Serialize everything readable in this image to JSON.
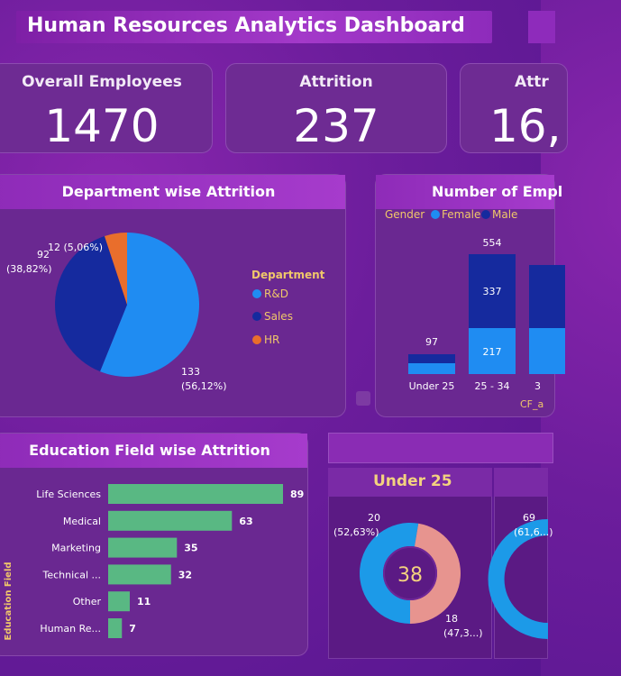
{
  "title": "Human Resources Analytics Dashboard",
  "kpis": [
    {
      "label": "Overall Employees",
      "value": "1470"
    },
    {
      "label": "Attrition",
      "value": "237"
    },
    {
      "label": "Attr",
      "value": "16,"
    }
  ],
  "dept_chart": {
    "title": "Department wise Attrition",
    "legend_title": "Department",
    "legend": [
      "R&D",
      "Sales",
      "HR"
    ],
    "labels": {
      "rd": [
        "133",
        "(56,12%)"
      ],
      "sales": [
        "92",
        "(38,82%)"
      ],
      "hr": [
        "12 (5,06%)"
      ]
    }
  },
  "age_chart": {
    "title": "Number of Empl",
    "legend_title": "Gender",
    "legend": [
      "Female",
      "Male"
    ],
    "xlabel": "CF_a",
    "labels": {
      "under25_total": "97",
      "a25_34_total": "554",
      "a25_34_male": "337",
      "a25_34_female": "217",
      "third_cat": "3"
    }
  },
  "edu_chart": {
    "title": "Education Field wise Attrition",
    "ylabel": "Education Field"
  },
  "age_band": {
    "label": "Under 25",
    "center": "38",
    "left_val": "20",
    "left_pct": "(52,63%)",
    "right_val": "18",
    "right_pct": "(47,3...)",
    "second_val": "69",
    "second_pct": "(61,6...)"
  },
  "chart_data": [
    {
      "type": "pie",
      "title": "Department wise Attrition",
      "categories": [
        "R&D",
        "Sales",
        "HR"
      ],
      "values": [
        133,
        92,
        12
      ],
      "percents": [
        56.12,
        38.82,
        5.06
      ],
      "colors": [
        "#1f8cf2",
        "#152a9e",
        "#e96e2c"
      ],
      "legend_title": "Department"
    },
    {
      "type": "bar",
      "title": "Number of Empl",
      "categories": [
        "Under 25",
        "25 - 34",
        "3"
      ],
      "series": [
        {
          "name": "Female",
          "values": [
            null,
            217,
            null
          ],
          "color": "#1f8cf2"
        },
        {
          "name": "Male",
          "values": [
            null,
            337,
            null
          ],
          "color": "#152a9e"
        }
      ],
      "totals": [
        97,
        554,
        null
      ],
      "legend_title": "Gender"
    },
    {
      "type": "bar",
      "orientation": "horizontal",
      "title": "Education Field wise Attrition",
      "categories": [
        "Life Sciences",
        "Medical",
        "Marketing",
        "Technical ...",
        "Other",
        "Human Re..."
      ],
      "values": [
        89,
        63,
        35,
        32,
        11,
        7
      ],
      "color": "#59b883",
      "ylabel": "Education Field"
    },
    {
      "type": "pie",
      "title": "Under 25",
      "values": [
        20,
        18
      ],
      "percents": [
        52.63,
        47.37
      ],
      "total": 38,
      "colors": [
        "#1c9ae8",
        "#e7948f"
      ]
    }
  ]
}
